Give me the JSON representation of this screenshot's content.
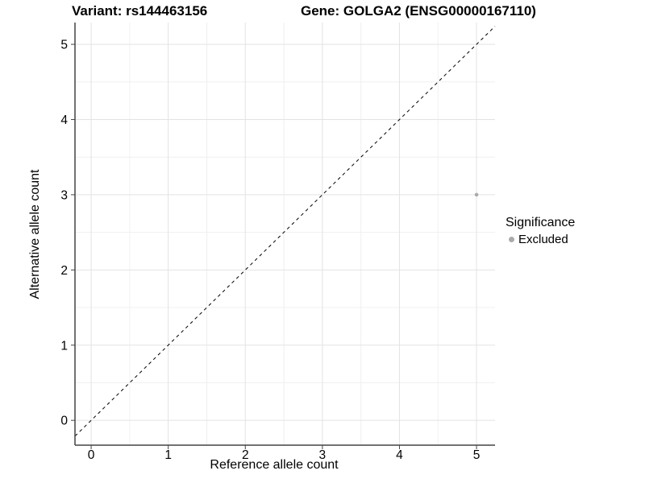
{
  "titles": {
    "variant": "Variant: rs144463156",
    "gene": "Gene: GOLGA2 (ENSG00000167110)"
  },
  "axes": {
    "x_label": "Reference allele count",
    "y_label": "Alternative allele count"
  },
  "legend": {
    "title": "Significance",
    "items": [
      {
        "label": "Excluded",
        "color": "#aaaaaa"
      }
    ]
  },
  "chart_data": {
    "type": "scatter",
    "title_left": "Variant: rs144463156",
    "title_right": "Gene: GOLGA2 (ENSG00000167110)",
    "xlabel": "Reference allele count",
    "ylabel": "Alternative allele count",
    "xlim": [
      -0.21,
      5.24
    ],
    "ylim": [
      -0.33,
      5.29
    ],
    "x_ticks": [
      0,
      1,
      2,
      3,
      4,
      5
    ],
    "y_ticks": [
      0,
      1,
      2,
      3,
      4,
      5
    ],
    "x_minor_ticks": [
      0.5,
      1.5,
      2.5,
      3.5,
      4.5
    ],
    "y_minor_ticks": [
      0.5,
      1.5,
      2.5,
      3.5,
      4.5
    ],
    "grid": "major+minor",
    "legend_position": "right",
    "series": [
      {
        "name": "Excluded",
        "color": "#aaaaaa",
        "points": [
          {
            "x": 5,
            "y": 3
          }
        ]
      }
    ],
    "reference_line": {
      "type": "identity",
      "slope": 1,
      "intercept": 0,
      "style": "dashed",
      "color": "#000000"
    },
    "colors": {
      "grid_major": "#e3e3e3",
      "grid_minor": "#f0f0f0",
      "axis_line": "#444444",
      "point": "#aaaaaa"
    }
  }
}
